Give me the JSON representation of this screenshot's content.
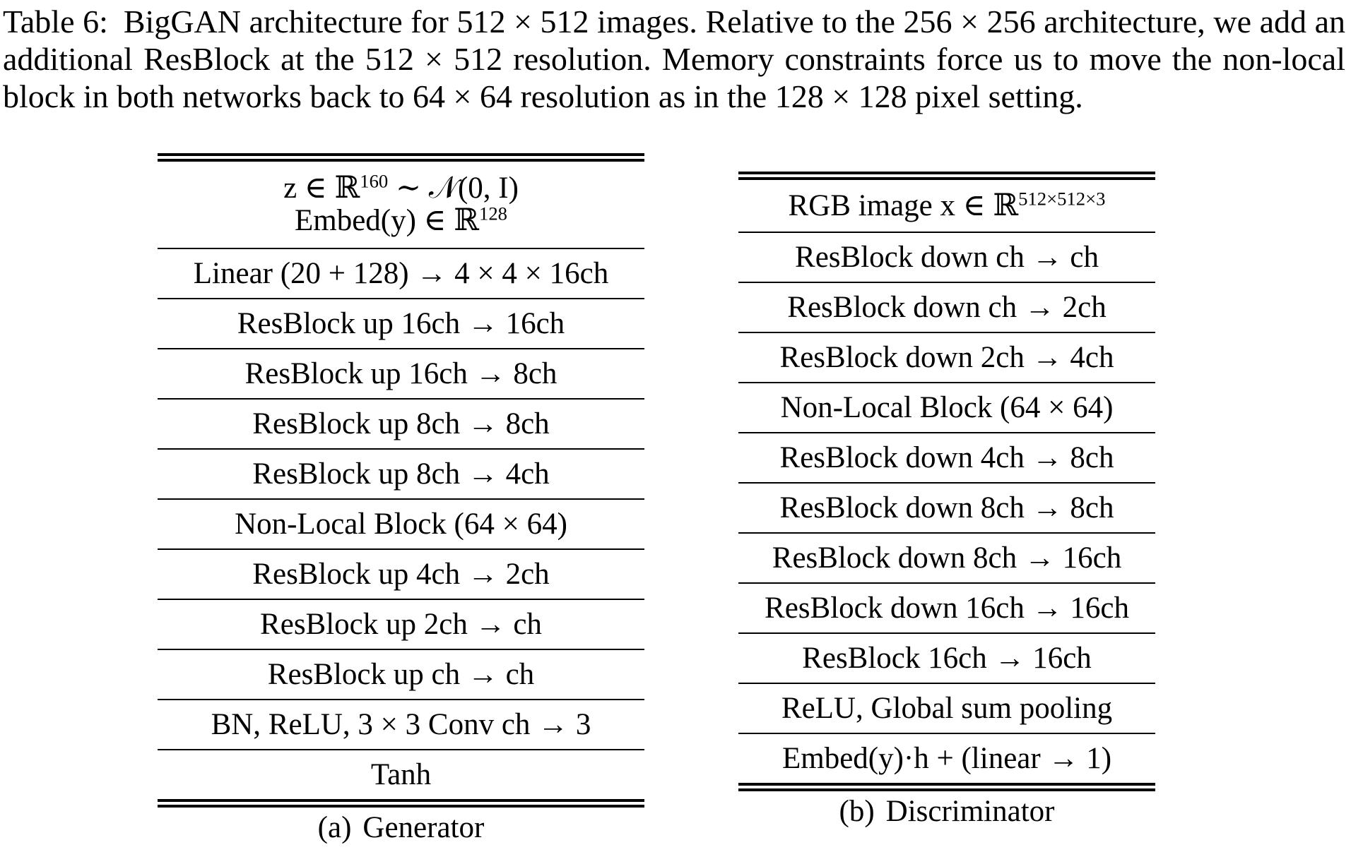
{
  "caption": {
    "label": "Table 6:",
    "text": "BigGAN architecture for 512 × 512 images. Relative to the 256 × 256 architecture, we add an additional ResBlock at the 512 × 512 resolution. Memory constraints force us to move the non-local block in both networks back to 64 × 64 resolution as in the 128 × 128 pixel setting."
  },
  "generator": {
    "caption_tag": "(a)",
    "caption_text": "Generator",
    "input_line1": "z ∈ ℝ",
    "input_line1_sup": "160",
    "input_line1_tail": " ∼ 𝒩(0, I)",
    "input_line2": "Embed(y) ∈ ℝ",
    "input_line2_sup": "128",
    "rows": [
      "Linear (20 + 128) → 4 × 4 × 16ch",
      "ResBlock up 16ch → 16ch",
      "ResBlock up 16ch → 8ch",
      "ResBlock up 8ch → 8ch",
      "ResBlock up 8ch → 4ch",
      "Non-Local Block (64 × 64)",
      "ResBlock up 4ch → 2ch",
      "ResBlock up 2ch → ch",
      "ResBlock up ch → ch",
      "BN, ReLU, 3 × 3 Conv ch → 3",
      "Tanh"
    ]
  },
  "discriminator": {
    "caption_tag": "(b)",
    "caption_text": "Discriminator",
    "input_text": "RGB image x ∈ ℝ",
    "input_sup": "512×512×3",
    "rows": [
      "ResBlock down ch → ch",
      "ResBlock down ch → 2ch",
      "ResBlock down 2ch → 4ch",
      "Non-Local Block (64 × 64)",
      "ResBlock down 4ch → 8ch",
      "ResBlock down 8ch → 8ch",
      "ResBlock down 8ch → 16ch",
      "ResBlock down 16ch → 16ch",
      "ResBlock 16ch → 16ch",
      "ReLU, Global sum pooling",
      "Embed(y)·h + (linear → 1)"
    ]
  }
}
